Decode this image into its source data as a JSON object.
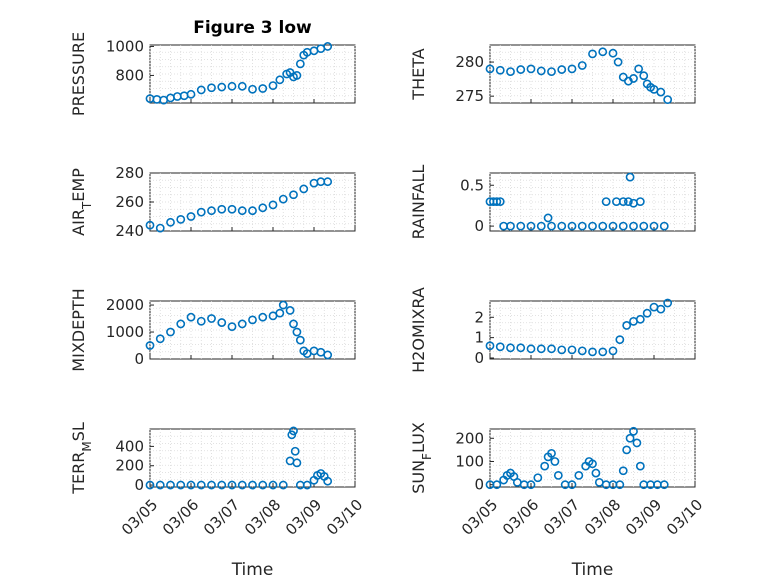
{
  "chart_data": [
    {
      "type": "scatter",
      "title": "Figure 3 low",
      "ylabel": "PRESSURE",
      "xlabel": "",
      "xlim": [
        "03/05",
        "03/10"
      ],
      "ylim": [
        610,
        1010
      ],
      "yticks": [
        {
          "v": 800,
          "label": "800"
        },
        {
          "v": 1000,
          "label": "1000"
        }
      ],
      "xticks": [],
      "color": "#0072bd",
      "series": [
        {
          "x": [
            "03/05 00:00",
            "03/05 04:00",
            "03/05 08:00",
            "03/05 12:00",
            "03/05 16:00",
            "03/05 20:00",
            "03/06 00:00",
            "03/06 06:00",
            "03/06 12:00",
            "03/06 18:00",
            "03/07 00:00",
            "03/07 06:00",
            "03/07 12:00",
            "03/07 18:00",
            "03/08 00:00",
            "03/08 04:00",
            "03/08 08:00",
            "03/08 10:00",
            "03/08 12:00",
            "03/08 14:00",
            "03/08 16:00",
            "03/08 18:00",
            "03/08 20:00",
            "03/09 00:00",
            "03/09 04:00",
            "03/09 08:00"
          ],
          "y": [
            640,
            635,
            630,
            645,
            655,
            660,
            670,
            700,
            715,
            720,
            725,
            725,
            705,
            710,
            730,
            770,
            810,
            820,
            790,
            800,
            880,
            940,
            960,
            970,
            985,
            1000
          ]
        }
      ]
    },
    {
      "type": "scatter",
      "title": "",
      "ylabel": "THETA",
      "xlabel": "",
      "xlim": [
        "03/05",
        "03/10"
      ],
      "ylim": [
        274,
        282.5
      ],
      "yticks": [
        {
          "v": 275,
          "label": "275"
        },
        {
          "v": 280,
          "label": "280"
        }
      ],
      "xticks": [],
      "color": "#0072bd",
      "series": [
        {
          "x": [
            "03/05 00:00",
            "03/05 06:00",
            "03/05 12:00",
            "03/05 18:00",
            "03/06 00:00",
            "03/06 06:00",
            "03/06 12:00",
            "03/06 18:00",
            "03/07 00:00",
            "03/07 06:00",
            "03/07 12:00",
            "03/07 18:00",
            "03/08 00:00",
            "03/08 03:00",
            "03/08 06:00",
            "03/08 09:00",
            "03/08 12:00",
            "03/08 15:00",
            "03/08 18:00",
            "03/08 20:00",
            "03/08 22:00",
            "03/09 00:00",
            "03/09 04:00",
            "03/09 08:00"
          ],
          "y": [
            279,
            278.8,
            278.6,
            278.9,
            279,
            278.7,
            278.6,
            278.9,
            279,
            279.5,
            281.2,
            281.5,
            281.3,
            280,
            277.8,
            277.2,
            277.6,
            279,
            278,
            276.8,
            276.3,
            276,
            275.6,
            274.5
          ]
        }
      ]
    },
    {
      "type": "scatter",
      "title": "",
      "ylabel": "AIR_TEMP",
      "xlabel": "",
      "xlim": [
        "03/05",
        "03/10"
      ],
      "ylim": [
        240,
        280
      ],
      "yticks": [
        {
          "v": 240,
          "label": "240"
        },
        {
          "v": 260,
          "label": "260"
        },
        {
          "v": 280,
          "label": "280"
        }
      ],
      "xticks": [],
      "color": "#0072bd",
      "series": [
        {
          "x": [
            "03/05 00:00",
            "03/05 06:00",
            "03/05 12:00",
            "03/05 18:00",
            "03/06 00:00",
            "03/06 06:00",
            "03/06 12:00",
            "03/06 18:00",
            "03/07 00:00",
            "03/07 06:00",
            "03/07 12:00",
            "03/07 18:00",
            "03/08 00:00",
            "03/08 06:00",
            "03/08 12:00",
            "03/08 18:00",
            "03/09 00:00",
            "03/09 04:00",
            "03/09 08:00"
          ],
          "y": [
            244,
            242,
            246,
            248,
            250,
            253,
            254,
            255,
            255,
            254,
            254,
            256,
            258,
            262,
            265,
            269,
            273,
            274,
            274
          ]
        }
      ]
    },
    {
      "type": "scatter",
      "title": "",
      "ylabel": "RAINFALL",
      "xlabel": "",
      "xlim": [
        "03/05",
        "03/10"
      ],
      "ylim": [
        -0.06,
        0.65
      ],
      "yticks": [
        {
          "v": 0,
          "label": "0"
        },
        {
          "v": 0.5,
          "label": "0.5"
        }
      ],
      "xticks": [],
      "color": "#0072bd",
      "series": [
        {
          "x": [
            "03/05 00:00",
            "03/05 02:00",
            "03/05 04:00",
            "03/05 06:00",
            "03/05 08:00",
            "03/05 12:00",
            "03/05 18:00",
            "03/06 00:00",
            "03/06 06:00",
            "03/06 12:00",
            "03/06 18:00",
            "03/07 00:00",
            "03/07 06:00",
            "03/07 12:00",
            "03/07 18:00",
            "03/08 00:00",
            "03/08 06:00",
            "03/08 12:00",
            "03/08 18:00",
            "03/09 00:00",
            "03/09 06:00",
            "03/06 10:00",
            "03/07 20:00",
            "03/08 02:00",
            "03/08 06:00",
            "03/08 09:00",
            "03/08 10:00",
            "03/08 12:00",
            "03/08 16:00"
          ],
          "y": [
            0.3,
            0.3,
            0.3,
            0.3,
            0,
            0,
            0,
            0,
            0,
            0,
            0,
            0,
            0,
            0,
            0,
            0,
            0,
            0,
            0,
            0,
            0,
            0.1,
            0.3,
            0.3,
            0.3,
            0.3,
            0.6,
            0.28,
            0.3
          ]
        }
      ]
    },
    {
      "type": "scatter",
      "title": "",
      "ylabel": "MIXDEPTH",
      "xlabel": "",
      "xlim": [
        "03/05",
        "03/10"
      ],
      "ylim": [
        0,
        2150
      ],
      "yticks": [
        {
          "v": 0,
          "label": "0"
        },
        {
          "v": 1000,
          "label": "1000"
        },
        {
          "v": 2000,
          "label": "2000"
        }
      ],
      "xticks": [],
      "color": "#0072bd",
      "series": [
        {
          "x": [
            "03/05 00:00",
            "03/05 06:00",
            "03/05 12:00",
            "03/05 18:00",
            "03/06 00:00",
            "03/06 06:00",
            "03/06 12:00",
            "03/06 18:00",
            "03/07 00:00",
            "03/07 06:00",
            "03/07 12:00",
            "03/07 18:00",
            "03/08 00:00",
            "03/08 04:00",
            "03/08 06:00",
            "03/08 10:00",
            "03/08 12:00",
            "03/08 14:00",
            "03/08 16:00",
            "03/08 18:00",
            "03/08 20:00",
            "03/09 00:00",
            "03/09 04:00",
            "03/09 08:00"
          ],
          "y": [
            500,
            750,
            1000,
            1300,
            1550,
            1400,
            1500,
            1350,
            1200,
            1300,
            1450,
            1550,
            1600,
            1700,
            2000,
            1800,
            1300,
            1000,
            700,
            300,
            200,
            300,
            250,
            150
          ]
        }
      ]
    },
    {
      "type": "scatter",
      "title": "",
      "ylabel": "H2OMIXRA",
      "xlabel": "",
      "xlim": [
        "03/05",
        "03/10"
      ],
      "ylim": [
        -0.05,
        2.8
      ],
      "yticks": [
        {
          "v": 0,
          "label": "0"
        },
        {
          "v": 1,
          "label": "1"
        },
        {
          "v": 2,
          "label": "2"
        }
      ],
      "xticks": [],
      "color": "#0072bd",
      "series": [
        {
          "x": [
            "03/05 00:00",
            "03/05 06:00",
            "03/05 12:00",
            "03/05 18:00",
            "03/06 00:00",
            "03/06 06:00",
            "03/06 12:00",
            "03/06 18:00",
            "03/07 00:00",
            "03/07 06:00",
            "03/07 12:00",
            "03/07 18:00",
            "03/08 00:00",
            "03/08 04:00",
            "03/08 08:00",
            "03/08 12:00",
            "03/08 16:00",
            "03/08 20:00",
            "03/09 00:00",
            "03/09 04:00",
            "03/09 08:00"
          ],
          "y": [
            0.6,
            0.55,
            0.5,
            0.5,
            0.45,
            0.45,
            0.45,
            0.4,
            0.4,
            0.35,
            0.3,
            0.3,
            0.35,
            0.9,
            1.6,
            1.8,
            1.9,
            2.2,
            2.5,
            2.4,
            2.7
          ]
        }
      ]
    },
    {
      "type": "scatter",
      "title": "",
      "ylabel": "TERR_MSL",
      "xlabel": "Time",
      "xlim": [
        "03/05",
        "03/10"
      ],
      "ylim": [
        -20,
        580
      ],
      "yticks": [
        {
          "v": 0,
          "label": "0"
        },
        {
          "v": 200,
          "label": "200"
        },
        {
          "v": 400,
          "label": "400"
        }
      ],
      "xticks": [
        {
          "v": "03/05",
          "label": "03/05"
        },
        {
          "v": "03/06",
          "label": "03/06"
        },
        {
          "v": "03/07",
          "label": "03/07"
        },
        {
          "v": "03/08",
          "label": "03/08"
        },
        {
          "v": "03/09",
          "label": "03/09"
        },
        {
          "v": "03/10",
          "label": "03/10"
        }
      ],
      "color": "#0072bd",
      "series": [
        {
          "x": [
            "03/05 00:00",
            "03/05 06:00",
            "03/05 12:00",
            "03/05 18:00",
            "03/06 00:00",
            "03/06 06:00",
            "03/06 12:00",
            "03/06 18:00",
            "03/07 00:00",
            "03/07 06:00",
            "03/07 12:00",
            "03/07 18:00",
            "03/08 00:00",
            "03/08 06:00",
            "03/08 10:00",
            "03/08 11:00",
            "03/08 12:00",
            "03/08 13:00",
            "03/08 14:00",
            "03/08 16:00",
            "03/08 20:00",
            "03/09 00:00",
            "03/09 02:00",
            "03/09 04:00",
            "03/09 06:00",
            "03/09 08:00"
          ],
          "y": [
            0,
            0,
            0,
            0,
            0,
            0,
            0,
            0,
            0,
            0,
            0,
            0,
            0,
            0,
            250,
            520,
            560,
            350,
            230,
            0,
            0,
            50,
            100,
            120,
            90,
            40
          ]
        }
      ]
    },
    {
      "type": "scatter",
      "title": "",
      "ylabel": "SUN_FLUX",
      "xlabel": "Time",
      "xlim": [
        "03/05",
        "03/10"
      ],
      "ylim": [
        -10,
        240
      ],
      "yticks": [
        {
          "v": 0,
          "label": "0"
        },
        {
          "v": 100,
          "label": "100"
        },
        {
          "v": 200,
          "label": "200"
        }
      ],
      "xticks": [
        {
          "v": "03/05",
          "label": "03/05"
        },
        {
          "v": "03/06",
          "label": "03/06"
        },
        {
          "v": "03/07",
          "label": "03/07"
        },
        {
          "v": "03/08",
          "label": "03/08"
        },
        {
          "v": "03/09",
          "label": "03/09"
        },
        {
          "v": "03/10",
          "label": "03/10"
        }
      ],
      "color": "#0072bd",
      "series": [
        {
          "x": [
            "03/05 00:00",
            "03/05 04:00",
            "03/05 08:00",
            "03/05 10:00",
            "03/05 12:00",
            "03/05 14:00",
            "03/05 16:00",
            "03/05 20:00",
            "03/06 00:00",
            "03/06 04:00",
            "03/06 08:00",
            "03/06 10:00",
            "03/06 12:00",
            "03/06 14:00",
            "03/06 16:00",
            "03/06 20:00",
            "03/07 00:00",
            "03/07 04:00",
            "03/07 08:00",
            "03/07 10:00",
            "03/07 12:00",
            "03/07 14:00",
            "03/07 16:00",
            "03/07 20:00",
            "03/08 00:00",
            "03/08 04:00",
            "03/08 06:00",
            "03/08 08:00",
            "03/08 10:00",
            "03/08 12:00",
            "03/08 14:00",
            "03/08 16:00",
            "03/08 18:00",
            "03/08 22:00",
            "03/09 02:00",
            "03/09 06:00"
          ],
          "y": [
            0,
            0,
            20,
            40,
            50,
            35,
            10,
            0,
            0,
            30,
            80,
            120,
            135,
            100,
            40,
            0,
            0,
            40,
            80,
            100,
            90,
            50,
            10,
            0,
            0,
            0,
            60,
            150,
            200,
            230,
            180,
            80,
            0,
            0,
            0,
            0
          ]
        }
      ]
    }
  ]
}
